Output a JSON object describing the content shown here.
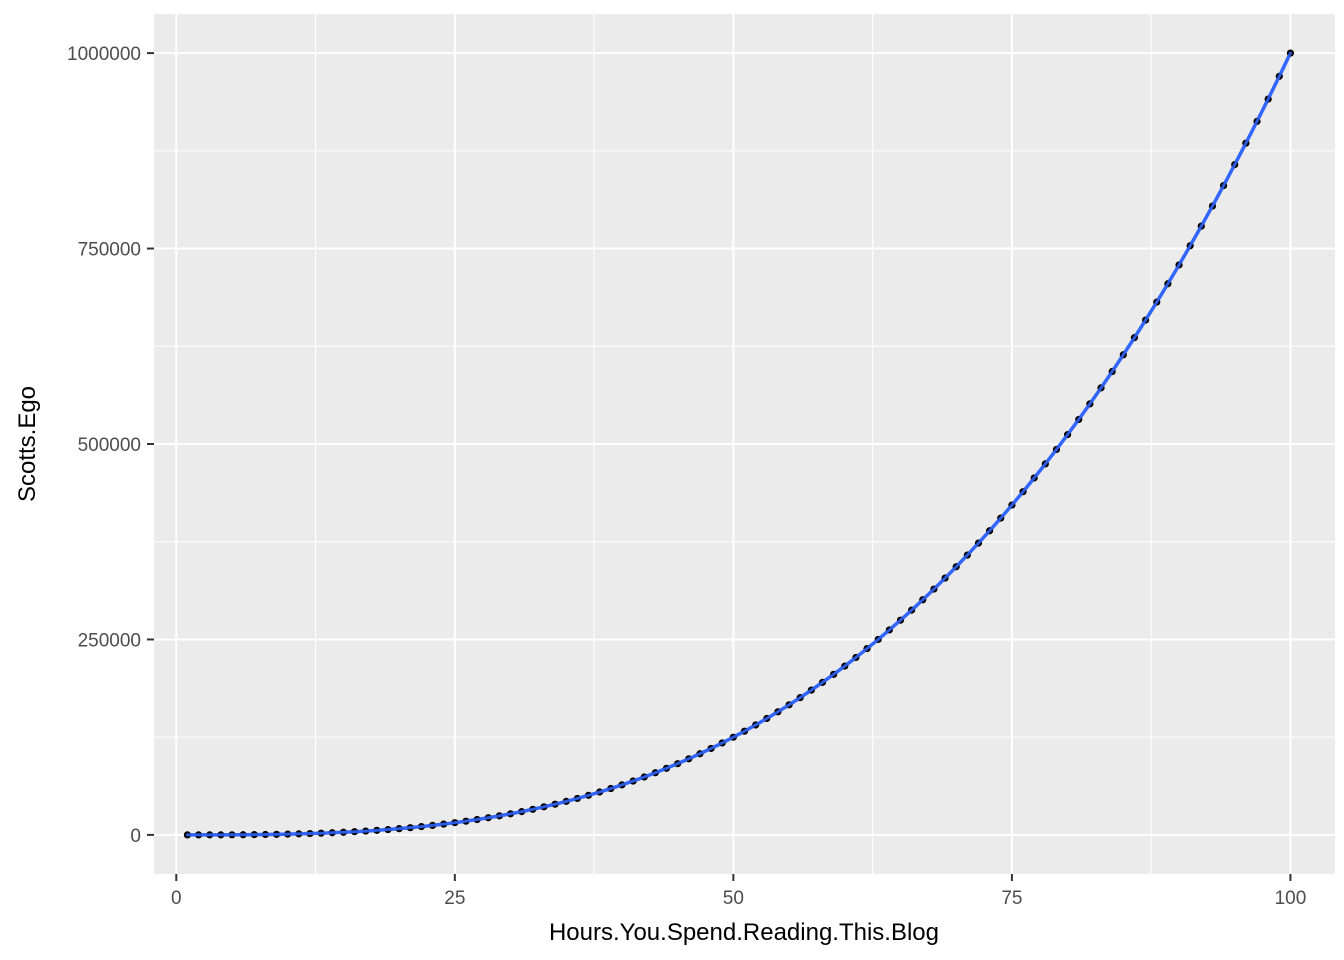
{
  "chart_data": {
    "type": "scatter",
    "title": "",
    "xlabel": "Hours.You.Spend.Reading.This.Blog",
    "ylabel": "Scotts.Ego",
    "xlim": [
      -2,
      104
    ],
    "ylim": [
      -50000,
      1050000
    ],
    "x_ticks": [
      0,
      25,
      50,
      75,
      100
    ],
    "x_tick_labels": [
      "0",
      "25",
      "50",
      "75",
      "100"
    ],
    "y_ticks": [
      0,
      250000,
      500000,
      750000,
      1000000
    ],
    "y_tick_labels": [
      "0",
      "250000",
      "500000",
      "750000",
      "1000000"
    ],
    "grid": true,
    "x_minor_ticks": [
      12.5,
      37.5,
      62.5,
      87.5
    ],
    "y_minor_ticks": [
      125000,
      375000,
      625000,
      875000
    ],
    "x": [
      1,
      2,
      3,
      4,
      5,
      6,
      7,
      8,
      9,
      10,
      11,
      12,
      13,
      14,
      15,
      16,
      17,
      18,
      19,
      20,
      21,
      22,
      23,
      24,
      25,
      26,
      27,
      28,
      29,
      30,
      31,
      32,
      33,
      34,
      35,
      36,
      37,
      38,
      39,
      40,
      41,
      42,
      43,
      44,
      45,
      46,
      47,
      48,
      49,
      50,
      51,
      52,
      53,
      54,
      55,
      56,
      57,
      58,
      59,
      60,
      61,
      62,
      63,
      64,
      65,
      66,
      67,
      68,
      69,
      70,
      71,
      72,
      73,
      74,
      75,
      76,
      77,
      78,
      79,
      80,
      81,
      82,
      83,
      84,
      85,
      86,
      87,
      88,
      89,
      90,
      91,
      92,
      93,
      94,
      95,
      96,
      97,
      98,
      99,
      100
    ],
    "y": [
      1,
      8,
      27,
      64,
      125,
      216,
      343,
      512,
      729,
      1000,
      1331,
      1728,
      2197,
      2744,
      3375,
      4096,
      4913,
      5832,
      6859,
      8000,
      9261,
      10648,
      12167,
      13824,
      15625,
      17576,
      19683,
      21952,
      24389,
      27000,
      29791,
      32768,
      35937,
      39304,
      42875,
      46656,
      50653,
      54872,
      59319,
      64000,
      68921,
      74088,
      79507,
      85184,
      91125,
      97336,
      103823,
      110592,
      117649,
      125000,
      132651,
      140608,
      148877,
      157464,
      166375,
      175616,
      185193,
      195112,
      205379,
      216000,
      226981,
      238328,
      250047,
      262144,
      274625,
      287496,
      300763,
      314432,
      328509,
      343000,
      357911,
      373248,
      389017,
      405224,
      421875,
      438976,
      456533,
      474552,
      493039,
      512000,
      531441,
      551368,
      571787,
      592704,
      614125,
      636056,
      658503,
      681472,
      704969,
      729000,
      753571,
      778688,
      804357,
      830584,
      857375,
      884736,
      912673,
      941192,
      970299,
      1000000
    ],
    "point_color": "#000000",
    "smooth_line_color": "#3366FF",
    "panel_background": "#EBEBEB",
    "grid_color": "#FFFFFF"
  }
}
